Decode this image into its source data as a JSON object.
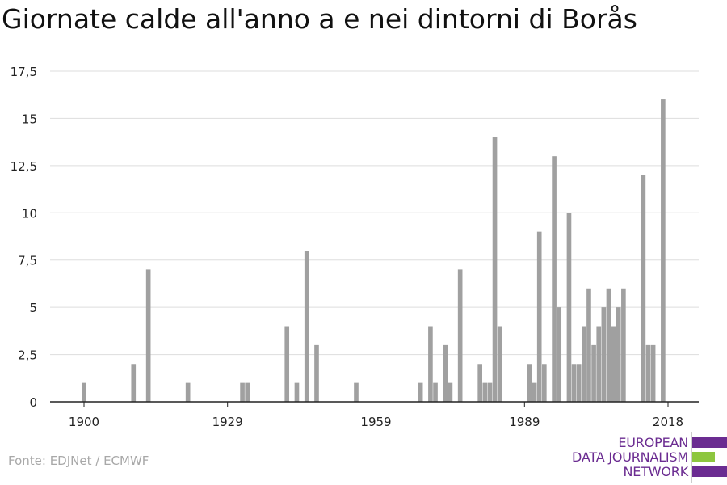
{
  "title": "Giornate calde all'anno a e nei dintorni di Borås",
  "source": "Fonte: EDJNet / ECMWF",
  "logo": {
    "line1": "EUROPEAN",
    "line2": "DATA JOURNALISM",
    "line3": "NETWORK",
    "colors": {
      "purple": "#6b2c91",
      "green": "#8dc63f"
    }
  },
  "chart_data": {
    "type": "bar",
    "title": "Giornate calde all'anno a e nei dintorni di Borås",
    "xlabel": "",
    "ylabel": "",
    "ylim": [
      0,
      17.5
    ],
    "xlim": [
      1900,
      2018
    ],
    "yticks": [
      "0",
      "2,5",
      "5",
      "7,5",
      "10",
      "12,5",
      "15",
      "17,5"
    ],
    "ytick_values": [
      0,
      2.5,
      5,
      7.5,
      10,
      12.5,
      15,
      17.5
    ],
    "xticks": [
      "1900",
      "1929",
      "1959",
      "1989",
      "2018"
    ],
    "xtick_values": [
      1900,
      1929,
      1959,
      1989,
      2018
    ],
    "bar_color": "#a0a0a0",
    "grid": true,
    "x": [
      1900,
      1910,
      1913,
      1921,
      1932,
      1933,
      1941,
      1943,
      1945,
      1947,
      1955,
      1968,
      1970,
      1971,
      1973,
      1974,
      1976,
      1980,
      1981,
      1982,
      1983,
      1984,
      1990,
      1991,
      1992,
      1993,
      1995,
      1996,
      1998,
      1999,
      2000,
      2001,
      2002,
      2003,
      2004,
      2005,
      2006,
      2007,
      2008,
      2009,
      2013,
      2014,
      2015,
      2017
    ],
    "values": [
      1,
      2,
      7,
      1,
      1,
      1,
      4,
      1,
      8,
      3,
      1,
      1,
      4,
      1,
      3,
      1,
      7,
      2,
      1,
      1,
      14,
      4,
      2,
      1,
      9,
      2,
      13,
      5,
      10,
      2,
      2,
      4,
      6,
      3,
      4,
      5,
      6,
      4,
      5,
      6,
      12,
      3,
      3,
      16
    ]
  }
}
